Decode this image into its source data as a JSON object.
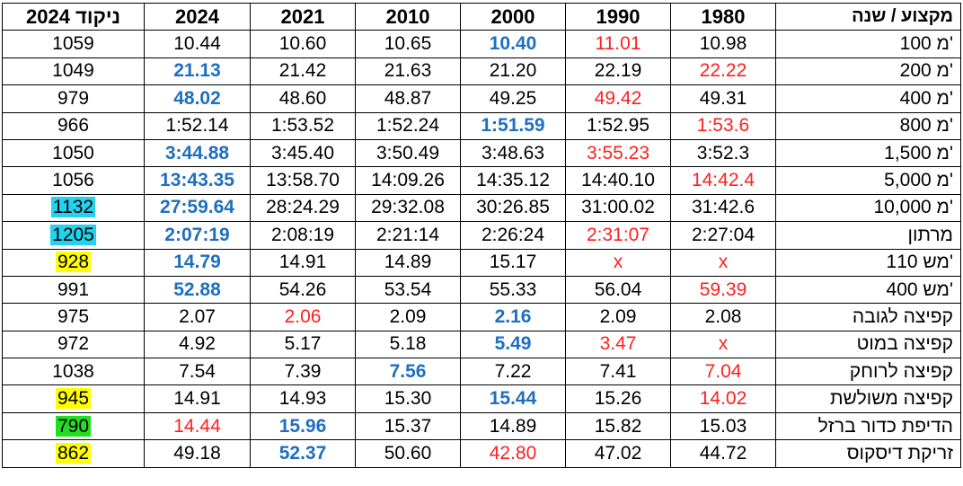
{
  "headers": [
    "ניקוד 2024",
    "2024",
    "2021",
    "2010",
    "2000",
    "1990",
    "1980",
    "מקצוע / שנה"
  ],
  "rows": [
    {
      "score": "1059",
      "score_bg": "",
      "y2024": {
        "v": "10.44",
        "s": ""
      },
      "y2021": {
        "v": "10.60",
        "s": ""
      },
      "y2010": {
        "v": "10.65",
        "s": ""
      },
      "y2000": {
        "v": "10.40",
        "s": "blue"
      },
      "y1990": {
        "v": "11.01",
        "s": "red"
      },
      "y1980": {
        "v": "10.98",
        "s": ""
      },
      "event": "100 מ'"
    },
    {
      "score": "1049",
      "score_bg": "",
      "y2024": {
        "v": "21.13",
        "s": "blue"
      },
      "y2021": {
        "v": "21.42",
        "s": ""
      },
      "y2010": {
        "v": "21.63",
        "s": ""
      },
      "y2000": {
        "v": "21.20",
        "s": ""
      },
      "y1990": {
        "v": "22.19",
        "s": ""
      },
      "y1980": {
        "v": "22.22",
        "s": "red"
      },
      "event": "200 מ'"
    },
    {
      "score": "979",
      "score_bg": "",
      "y2024": {
        "v": "48.02",
        "s": "blue"
      },
      "y2021": {
        "v": "48.60",
        "s": ""
      },
      "y2010": {
        "v": "48.87",
        "s": ""
      },
      "y2000": {
        "v": "49.25",
        "s": ""
      },
      "y1990": {
        "v": "49.42",
        "s": "red"
      },
      "y1980": {
        "v": "49.31",
        "s": ""
      },
      "event": "400 מ'"
    },
    {
      "score": "966",
      "score_bg": "",
      "y2024": {
        "v": "1:52.14",
        "s": ""
      },
      "y2021": {
        "v": "1:53.52",
        "s": ""
      },
      "y2010": {
        "v": "1:52.24",
        "s": ""
      },
      "y2000": {
        "v": "1:51.59",
        "s": "blue"
      },
      "y1990": {
        "v": "1:52.95",
        "s": ""
      },
      "y1980": {
        "v": "1:53.6",
        "s": "red"
      },
      "event": "800 מ'"
    },
    {
      "score": "1050",
      "score_bg": "",
      "y2024": {
        "v": "3:44.88",
        "s": "blue"
      },
      "y2021": {
        "v": "3:45.40",
        "s": ""
      },
      "y2010": {
        "v": "3:50.49",
        "s": ""
      },
      "y2000": {
        "v": "3:48.63",
        "s": ""
      },
      "y1990": {
        "v": "3:55.23",
        "s": "red"
      },
      "y1980": {
        "v": "3:52.3",
        "s": ""
      },
      "event": "1,500 מ'"
    },
    {
      "score": "1056",
      "score_bg": "",
      "y2024": {
        "v": "13:43.35",
        "s": "blue"
      },
      "y2021": {
        "v": "13:58.70",
        "s": ""
      },
      "y2010": {
        "v": "14:09.26",
        "s": ""
      },
      "y2000": {
        "v": "14:35.12",
        "s": ""
      },
      "y1990": {
        "v": "14:40.10",
        "s": ""
      },
      "y1980": {
        "v": "14:42.4",
        "s": "red"
      },
      "event": "5,000 מ'"
    },
    {
      "score": "1132",
      "score_bg": "#22d3ee",
      "y2024": {
        "v": "27:59.64",
        "s": "blue"
      },
      "y2021": {
        "v": "28:24.29",
        "s": ""
      },
      "y2010": {
        "v": "29:32.08",
        "s": ""
      },
      "y2000": {
        "v": "30:26.85",
        "s": ""
      },
      "y1990": {
        "v": "31:00.02",
        "s": ""
      },
      "y1980": {
        "v": "31:42.6",
        "s": ""
      },
      "event": "10,000 מ'"
    },
    {
      "score": "1205",
      "score_bg": "#22d3ee",
      "y2024": {
        "v": "2:07:19",
        "s": "blue"
      },
      "y2021": {
        "v": "2:08:19",
        "s": ""
      },
      "y2010": {
        "v": "2:21:14",
        "s": ""
      },
      "y2000": {
        "v": "2:26:24",
        "s": ""
      },
      "y1990": {
        "v": "2:31:07",
        "s": "red"
      },
      "y1980": {
        "v": "2:27:04",
        "s": ""
      },
      "event": "מרתון"
    },
    {
      "score": "928",
      "score_bg": "#ffff00",
      "y2024": {
        "v": "14.79",
        "s": "blue"
      },
      "y2021": {
        "v": "14.91",
        "s": ""
      },
      "y2010": {
        "v": "14.89",
        "s": ""
      },
      "y2000": {
        "v": "15.17",
        "s": ""
      },
      "y1990": {
        "v": "x",
        "s": "red"
      },
      "y1980": {
        "v": "x",
        "s": "red"
      },
      "event": "110 מש'"
    },
    {
      "score": "991",
      "score_bg": "",
      "y2024": {
        "v": "52.88",
        "s": "blue"
      },
      "y2021": {
        "v": "54.26",
        "s": ""
      },
      "y2010": {
        "v": "53.54",
        "s": ""
      },
      "y2000": {
        "v": "55.33",
        "s": ""
      },
      "y1990": {
        "v": "56.04",
        "s": ""
      },
      "y1980": {
        "v": "59.39",
        "s": "red"
      },
      "event": "400 מש'"
    },
    {
      "score": "975",
      "score_bg": "",
      "y2024": {
        "v": "2.07",
        "s": ""
      },
      "y2021": {
        "v": "2.06",
        "s": "red"
      },
      "y2010": {
        "v": "2.09",
        "s": ""
      },
      "y2000": {
        "v": "2.16",
        "s": "blue"
      },
      "y1990": {
        "v": "2.09",
        "s": ""
      },
      "y1980": {
        "v": "2.08",
        "s": ""
      },
      "event": "קפיצה לגובה"
    },
    {
      "score": "972",
      "score_bg": "",
      "y2024": {
        "v": "4.92",
        "s": ""
      },
      "y2021": {
        "v": "5.17",
        "s": ""
      },
      "y2010": {
        "v": "5.18",
        "s": ""
      },
      "y2000": {
        "v": "5.49",
        "s": "blue"
      },
      "y1990": {
        "v": "3.47",
        "s": "red"
      },
      "y1980": {
        "v": "x",
        "s": "red"
      },
      "event": "קפיצה במוט"
    },
    {
      "score": "1038",
      "score_bg": "",
      "y2024": {
        "v": "7.54",
        "s": ""
      },
      "y2021": {
        "v": "7.39",
        "s": ""
      },
      "y2010": {
        "v": "7.56",
        "s": "blue"
      },
      "y2000": {
        "v": "7.22",
        "s": ""
      },
      "y1990": {
        "v": "7.41",
        "s": ""
      },
      "y1980": {
        "v": "7.04",
        "s": "red"
      },
      "event": "קפיצה לרוחק"
    },
    {
      "score": "945",
      "score_bg": "#ffff00",
      "y2024": {
        "v": "14.91",
        "s": ""
      },
      "y2021": {
        "v": "14.93",
        "s": ""
      },
      "y2010": {
        "v": "15.30",
        "s": ""
      },
      "y2000": {
        "v": "15.44",
        "s": "blue"
      },
      "y1990": {
        "v": "15.26",
        "s": ""
      },
      "y1980": {
        "v": "14.02",
        "s": "red"
      },
      "event": "קפיצה משולשת"
    },
    {
      "score": "790",
      "score_bg": "#22dd22",
      "y2024": {
        "v": "14.44",
        "s": "red"
      },
      "y2021": {
        "v": "15.96",
        "s": "blue"
      },
      "y2010": {
        "v": "15.37",
        "s": ""
      },
      "y2000": {
        "v": "14.89",
        "s": ""
      },
      "y1990": {
        "v": "15.82",
        "s": ""
      },
      "y1980": {
        "v": "15.03",
        "s": ""
      },
      "event": "הדיפת כדור ברזל"
    },
    {
      "score": "862",
      "score_bg": "#ffff00",
      "y2024": {
        "v": "49.18",
        "s": ""
      },
      "y2021": {
        "v": "52.37",
        "s": "blue"
      },
      "y2010": {
        "v": "50.60",
        "s": ""
      },
      "y2000": {
        "v": "42.80",
        "s": "red"
      },
      "y1990": {
        "v": "47.02",
        "s": ""
      },
      "y1980": {
        "v": "44.72",
        "s": ""
      },
      "event": "זריקת דיסקוס"
    }
  ]
}
